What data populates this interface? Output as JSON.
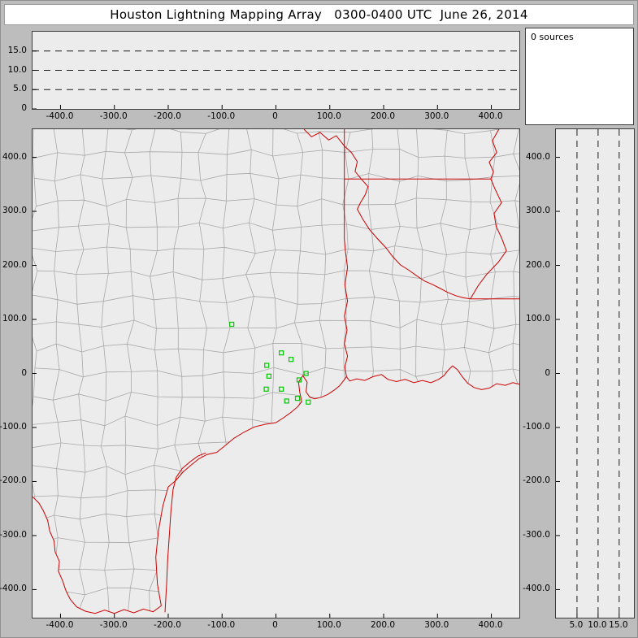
{
  "title": "Houston Lightning Mapping Array   0300-0400 UTC  June 26, 2014",
  "colors": {
    "frame": "#bdbdbd",
    "plot_bg": "#ececec",
    "border": "#3c3c3c",
    "county": "#a8a8a8",
    "boundary": "#cc0000",
    "station": "#00c800",
    "dash": "#1a1a1a"
  },
  "chart_data": [
    {
      "name": "altitude-vs-eastwest",
      "type": "scatter",
      "x_range": [
        -452,
        452
      ],
      "y_range": [
        0,
        20
      ],
      "x_ticks": [
        "-400.0",
        "-300.0",
        "-200.0",
        "-100.0",
        "0",
        "100.0",
        "200.0",
        "300.0",
        "400.0"
      ],
      "y_ticks": [
        "15.0",
        "10.0",
        "5.0",
        "0"
      ],
      "dashed_y": [
        5,
        10,
        15
      ],
      "points": []
    },
    {
      "name": "source-count-panel",
      "type": "table",
      "label": "0 sources",
      "points": []
    },
    {
      "name": "plan-view-map",
      "type": "scatter",
      "x_range": [
        -452,
        452
      ],
      "y_range": [
        -452,
        452
      ],
      "x_ticks": [
        "-400.0",
        "-300.0",
        "-200.0",
        "-100.0",
        "0",
        "100.0",
        "200.0",
        "300.0",
        "400.0"
      ],
      "y_ticks": [
        "400.0",
        "300.0",
        "200.0",
        "100.0",
        "0",
        "-100.0",
        "-200.0",
        "-300.0",
        "-400.0"
      ],
      "points": [],
      "stations": [
        [
          -82,
          91
        ],
        [
          10,
          38
        ],
        [
          -17,
          15
        ],
        [
          28,
          26
        ],
        [
          -13,
          -5
        ],
        [
          -18,
          -29
        ],
        [
          10,
          -29
        ],
        [
          43,
          -12
        ],
        [
          56,
          0
        ],
        [
          20,
          -51
        ],
        [
          40,
          -46
        ],
        [
          60,
          -53
        ]
      ],
      "boundaries": {
        "coast": [
          [
            -213,
            -430
          ],
          [
            -220,
            -390
          ],
          [
            -223,
            -340
          ],
          [
            -218,
            -290
          ],
          [
            -210,
            -245
          ],
          [
            -200,
            -210
          ],
          [
            -186,
            -198
          ],
          [
            -172,
            -182
          ],
          [
            -158,
            -170
          ],
          [
            -143,
            -158
          ],
          [
            -128,
            -150
          ],
          [
            -110,
            -146
          ],
          [
            -95,
            -134
          ],
          [
            -78,
            -120
          ],
          [
            -60,
            -109
          ],
          [
            -40,
            -99
          ],
          [
            -20,
            -94
          ],
          [
            0,
            -91
          ],
          [
            14,
            -82
          ],
          [
            28,
            -72
          ],
          [
            40,
            -62
          ],
          [
            48,
            -52
          ],
          [
            44,
            -34
          ],
          [
            42,
            -16
          ],
          [
            50,
            -4
          ],
          [
            58,
            -16
          ],
          [
            56,
            -34
          ],
          [
            63,
            -44
          ],
          [
            72,
            -47
          ],
          [
            84,
            -44
          ],
          [
            96,
            -39
          ],
          [
            108,
            -31
          ],
          [
            118,
            -23
          ],
          [
            126,
            -13
          ],
          [
            131,
            -6
          ],
          [
            137,
            -14
          ],
          [
            150,
            -10
          ],
          [
            165,
            -13
          ],
          [
            180,
            -6
          ],
          [
            196,
            -2
          ],
          [
            208,
            -11
          ],
          [
            224,
            -15
          ],
          [
            240,
            -11
          ],
          [
            256,
            -17
          ],
          [
            272,
            -13
          ],
          [
            288,
            -17
          ],
          [
            302,
            -11
          ],
          [
            312,
            -4
          ],
          [
            320,
            6
          ],
          [
            328,
            14
          ],
          [
            337,
            7
          ],
          [
            346,
            -6
          ],
          [
            356,
            -18
          ],
          [
            368,
            -26
          ],
          [
            382,
            -30
          ],
          [
            396,
            -27
          ],
          [
            410,
            -19
          ],
          [
            426,
            -22
          ],
          [
            440,
            -17
          ],
          [
            452,
            -20
          ]
        ],
        "rio_grande": [
          [
            -213,
            -430
          ],
          [
            -228,
            -441
          ],
          [
            -246,
            -436
          ],
          [
            -264,
            -443
          ],
          [
            -282,
            -437
          ],
          [
            -300,
            -444
          ],
          [
            -318,
            -438
          ],
          [
            -336,
            -444
          ],
          [
            -354,
            -440
          ],
          [
            -370,
            -432
          ],
          [
            -382,
            -418
          ],
          [
            -390,
            -402
          ],
          [
            -396,
            -384
          ],
          [
            -404,
            -366
          ],
          [
            -402,
            -348
          ],
          [
            -410,
            -330
          ],
          [
            -412,
            -310
          ],
          [
            -420,
            -292
          ],
          [
            -424,
            -272
          ],
          [
            -432,
            -254
          ],
          [
            -440,
            -240
          ],
          [
            -452,
            -228
          ]
        ],
        "barrier_island": [
          [
            -206,
            -442
          ],
          [
            -203,
            -390
          ],
          [
            -201,
            -345
          ],
          [
            -198,
            -300
          ],
          [
            -195,
            -255
          ],
          [
            -191,
            -215
          ],
          [
            -185,
            -192
          ],
          [
            -174,
            -176
          ],
          [
            -160,
            -164
          ],
          [
            -145,
            -153
          ],
          [
            -130,
            -147
          ]
        ],
        "tx_la_border": [
          [
            131,
            -6
          ],
          [
            128,
            12
          ],
          [
            133,
            32
          ],
          [
            127,
            55
          ],
          [
            132,
            80
          ],
          [
            127,
            106
          ],
          [
            133,
            134
          ],
          [
            128,
            164
          ],
          [
            133,
            196
          ],
          [
            129,
            226
          ],
          [
            127,
            248
          ],
          [
            127,
            360
          ],
          [
            127,
            421
          ]
        ],
        "ok_ar_border": [
          [
            127,
            452
          ],
          [
            127,
            421
          ]
        ],
        "ar_la_border": [
          [
            127,
            360
          ],
          [
            399,
            360
          ]
        ],
        "la_ms_border": [
          [
            361,
            138
          ],
          [
            452,
            138
          ]
        ],
        "red_river": [
          [
            52,
            452
          ],
          [
            66,
            438
          ],
          [
            82,
            446
          ],
          [
            98,
            432
          ],
          [
            112,
            440
          ],
          [
            127,
            421
          ],
          [
            140,
            409
          ],
          [
            151,
            392
          ],
          [
            147,
            374
          ],
          [
            159,
            359
          ],
          [
            171,
            346
          ],
          [
            166,
            331
          ],
          [
            157,
            316
          ],
          [
            151,
            304
          ],
          [
            161,
            286
          ],
          [
            174,
            266
          ],
          [
            189,
            249
          ],
          [
            204,
            233
          ],
          [
            217,
            216
          ],
          [
            231,
            201
          ],
          [
            247,
            191
          ],
          [
            261,
            181
          ],
          [
            276,
            171
          ],
          [
            290,
            165
          ],
          [
            304,
            158
          ],
          [
            319,
            150
          ],
          [
            334,
            144
          ],
          [
            348,
            140
          ],
          [
            361,
            138
          ]
        ],
        "mississippi_river": [
          [
            414,
            452
          ],
          [
            402,
            431
          ],
          [
            410,
            409
          ],
          [
            396,
            391
          ],
          [
            404,
            373
          ],
          [
            399,
            360
          ],
          [
            407,
            341
          ],
          [
            419,
            316
          ],
          [
            405,
            296
          ],
          [
            409,
            272
          ],
          [
            419,
            251
          ],
          [
            428,
            227
          ],
          [
            413,
            206
          ],
          [
            391,
            183
          ],
          [
            376,
            163
          ],
          [
            361,
            138
          ]
        ]
      }
    },
    {
      "name": "altitude-vs-northsouth",
      "type": "scatter",
      "x_range": [
        0,
        18.5
      ],
      "y_range": [
        -452,
        452
      ],
      "x_ticks": [
        "5.0",
        "10.0",
        "15.0"
      ],
      "y_ticks": [
        "400.0",
        "300.0",
        "200.0",
        "100.0",
        "0",
        "-100.0",
        "-200.0",
        "-300.0",
        "-400.0"
      ],
      "dashed_x": [
        5,
        10,
        15
      ],
      "points": []
    }
  ]
}
